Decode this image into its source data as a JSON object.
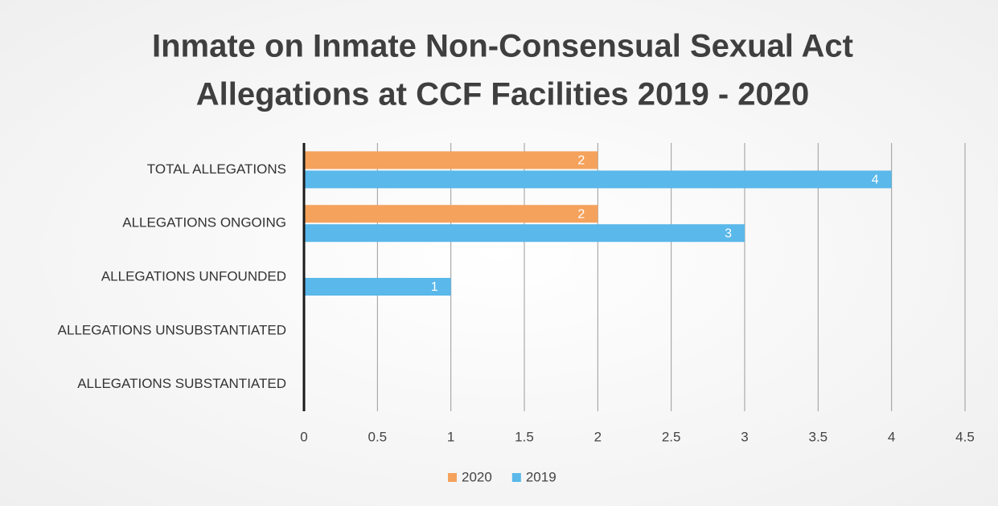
{
  "chart_data": {
    "type": "hbar",
    "title": [
      "Inmate on Inmate Non-Consensual Sexual Act",
      "Allegations at CCF Facilities 2019 - 2020"
    ],
    "categories": [
      "TOTAL ALLEGATIONS",
      "ALLEGATIONS ONGOING",
      "ALLEGATIONS UNFOUNDED",
      "ALLEGATIONS UNSUBSTANTIATED",
      "ALLEGATIONS SUBSTANTIATED"
    ],
    "series": [
      {
        "name": "2020",
        "color": "#f5a25d",
        "values": [
          2,
          2,
          0,
          0,
          0
        ]
      },
      {
        "name": "2019",
        "color": "#5ab8ea",
        "values": [
          4,
          3,
          1,
          0,
          0
        ]
      }
    ],
    "xlim": [
      0,
      4.5
    ],
    "xticks": [
      0,
      0.5,
      1,
      1.5,
      2,
      2.5,
      3,
      3.5,
      4,
      4.5
    ],
    "grid": true,
    "legend": "bottom"
  }
}
